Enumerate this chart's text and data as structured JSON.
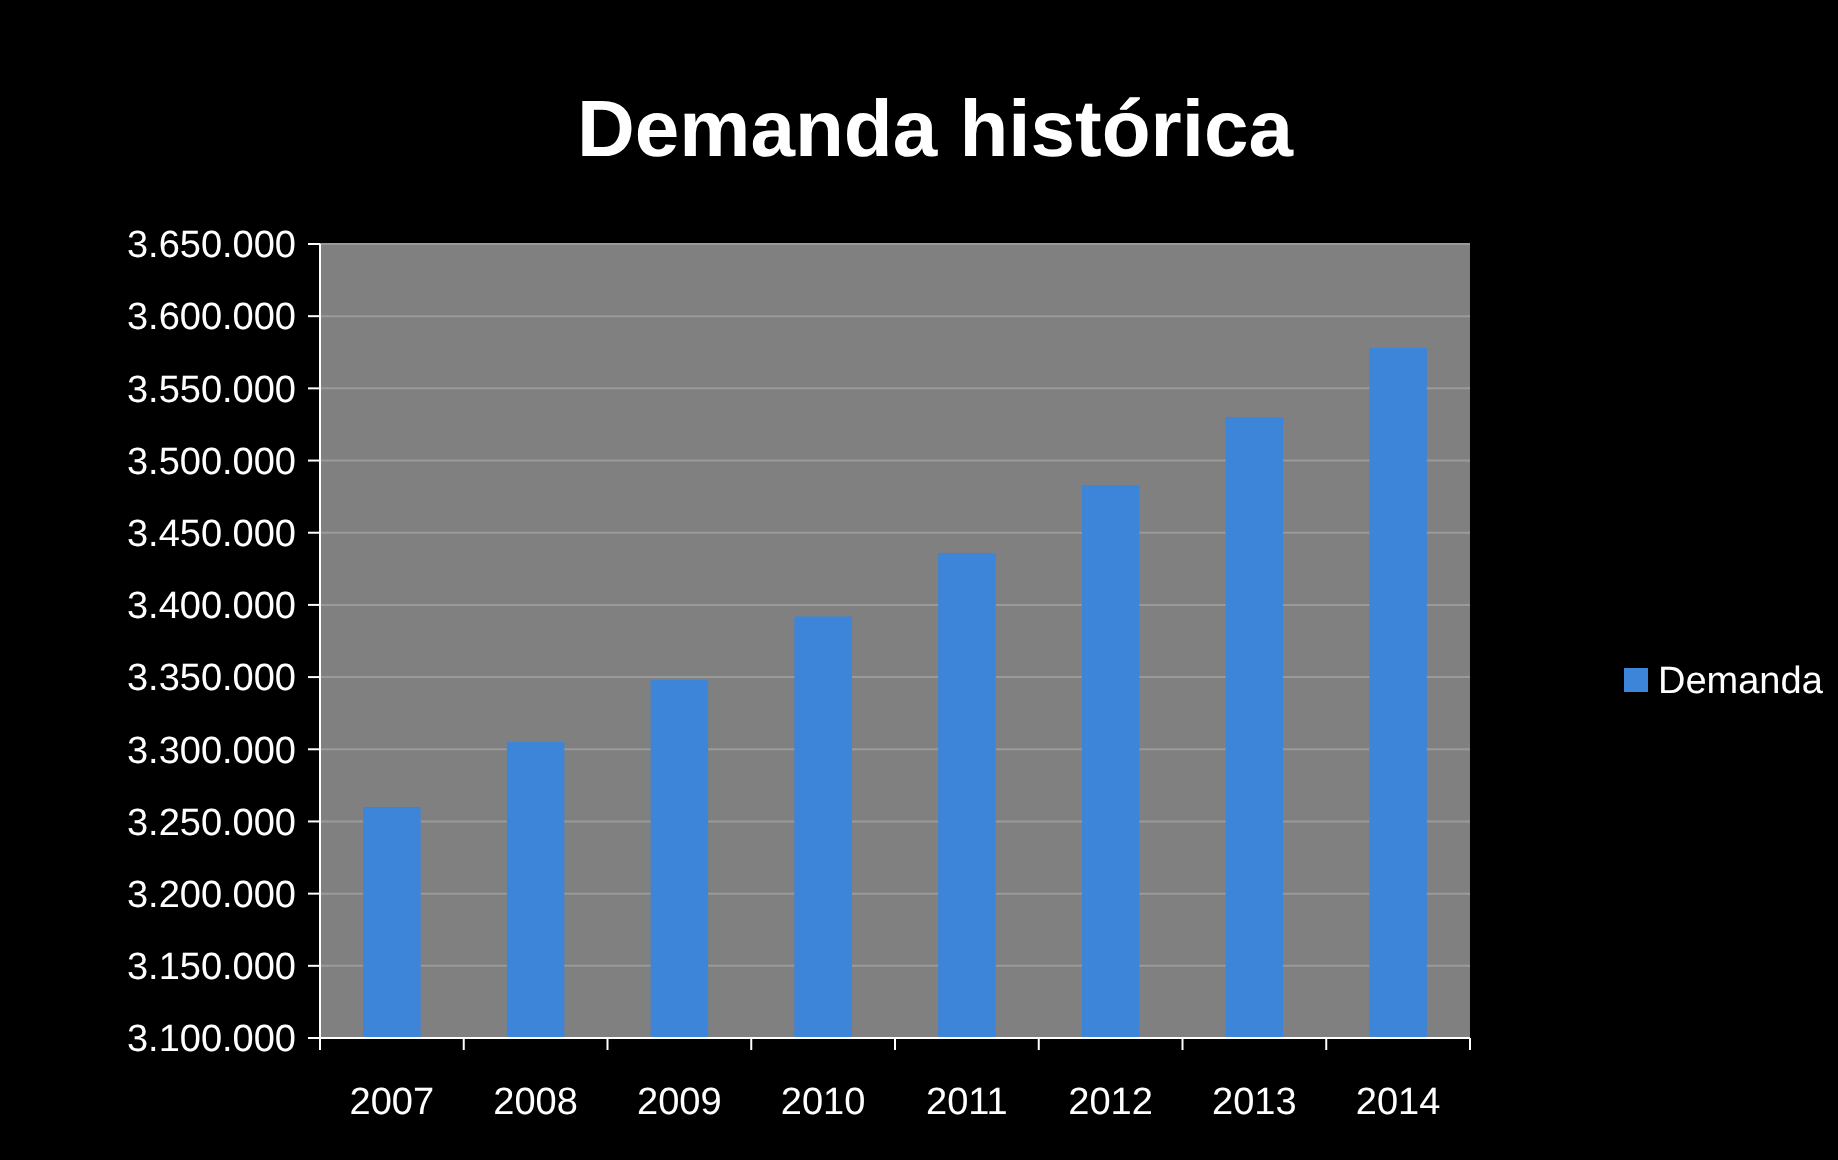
{
  "chart_data": {
    "type": "bar",
    "title": "Demanda histórica",
    "categories": [
      "2007",
      "2008",
      "2009",
      "2010",
      "2011",
      "2012",
      "2013",
      "2014"
    ],
    "series": [
      {
        "name": "Demanda",
        "color": "#3d85d8",
        "values": [
          3260000,
          3305000,
          3348000,
          3392000,
          3436000,
          3483000,
          3530000,
          3578000
        ]
      }
    ],
    "ylim": [
      3100000,
      3650000
    ],
    "yticks": [
      {
        "value": 3100000,
        "label": "3.100.000"
      },
      {
        "value": 3150000,
        "label": "3.150.000"
      },
      {
        "value": 3200000,
        "label": "3.200.000"
      },
      {
        "value": 3250000,
        "label": "3.250.000"
      },
      {
        "value": 3300000,
        "label": "3.300.000"
      },
      {
        "value": 3350000,
        "label": "3.350.000"
      },
      {
        "value": 3400000,
        "label": "3.400.000"
      },
      {
        "value": 3450000,
        "label": "3.450.000"
      },
      {
        "value": 3500000,
        "label": "3.500.000"
      },
      {
        "value": 3550000,
        "label": "3.550.000"
      },
      {
        "value": 3600000,
        "label": "3.600.000"
      },
      {
        "value": 3650000,
        "label": "3.650.000"
      }
    ],
    "grid": "y",
    "legend": "right"
  }
}
